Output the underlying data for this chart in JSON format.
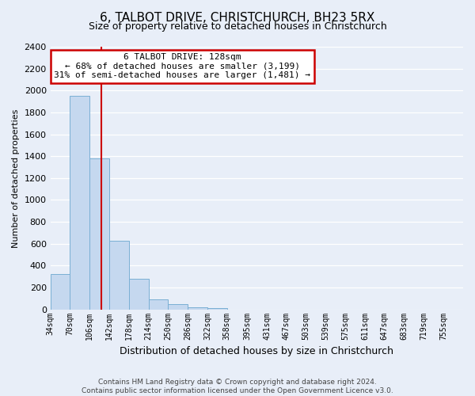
{
  "title": "6, TALBOT DRIVE, CHRISTCHURCH, BH23 5RX",
  "subtitle": "Size of property relative to detached houses in Christchurch",
  "xlabel": "Distribution of detached houses by size in Christchurch",
  "ylabel": "Number of detached properties",
  "bin_labels": [
    "34sqm",
    "70sqm",
    "106sqm",
    "142sqm",
    "178sqm",
    "214sqm",
    "250sqm",
    "286sqm",
    "322sqm",
    "358sqm",
    "395sqm",
    "431sqm",
    "467sqm",
    "503sqm",
    "539sqm",
    "575sqm",
    "611sqm",
    "647sqm",
    "683sqm",
    "719sqm",
    "755sqm"
  ],
  "bar_values": [
    320,
    1950,
    1380,
    630,
    280,
    95,
    45,
    20,
    15,
    0,
    0,
    0,
    0,
    0,
    0,
    0,
    0,
    0,
    0,
    0
  ],
  "bar_color": "#c5d8ef",
  "bar_edge_color": "#7aafd4",
  "bin_edges_values": [
    34,
    70,
    106,
    142,
    178,
    214,
    250,
    286,
    322,
    358,
    395,
    431,
    467,
    503,
    539,
    575,
    611,
    647,
    683,
    719,
    755
  ],
  "property_line_x": 128,
  "annotation_title": "6 TALBOT DRIVE: 128sqm",
  "annotation_line1": "← 68% of detached houses are smaller (3,199)",
  "annotation_line2": "31% of semi-detached houses are larger (1,481) →",
  "annotation_box_facecolor": "#ffffff",
  "annotation_box_edgecolor": "#cc0000",
  "property_line_color": "#cc0000",
  "ylim": [
    0,
    2400
  ],
  "yticks": [
    0,
    200,
    400,
    600,
    800,
    1000,
    1200,
    1400,
    1600,
    1800,
    2000,
    2200,
    2400
  ],
  "footer_line1": "Contains HM Land Registry data © Crown copyright and database right 2024.",
  "footer_line2": "Contains public sector information licensed under the Open Government Licence v3.0.",
  "bg_color": "#e8eef8",
  "grid_color": "#ffffff",
  "title_fontsize": 11,
  "subtitle_fontsize": 9,
  "ylabel_fontsize": 8,
  "xlabel_fontsize": 9,
  "ytick_fontsize": 8,
  "xtick_fontsize": 7,
  "annotation_fontsize": 8,
  "footer_fontsize": 6.5
}
